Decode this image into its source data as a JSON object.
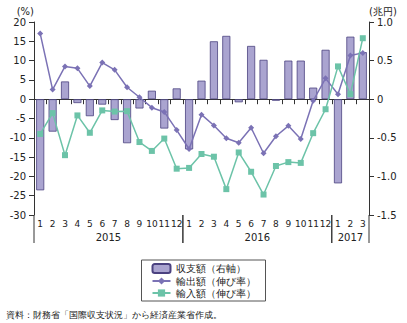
{
  "chart_data": {
    "type": "bar",
    "y_label": "(%)",
    "y2_label": "(兆円)",
    "source": "資料：財務省「国際収支状況」から経済産業省作成。",
    "categories": [
      "1",
      "2",
      "3",
      "4",
      "5",
      "6",
      "7",
      "8",
      "9",
      "10",
      "11",
      "12",
      "1",
      "2",
      "3",
      "4",
      "5",
      "6",
      "7",
      "8",
      "9",
      "10",
      "11",
      "12",
      "1",
      "2",
      "3"
    ],
    "years": [
      "2015",
      "2016",
      "2017"
    ],
    "year_counts": [
      12,
      12,
      3
    ],
    "ylim": [
      -30,
      20
    ],
    "yticks": [
      -30,
      -25,
      -20,
      -15,
      -10,
      -5,
      0,
      5,
      10,
      15,
      20
    ],
    "y2lim": [
      -1.5,
      1.0
    ],
    "y2ticks": [
      {
        "value": -1.5,
        "label": "-1.5"
      },
      {
        "value": -1,
        "label": "-1.0"
      },
      {
        "value": -0.5,
        "label": "-0.5"
      },
      0,
      0.5,
      {
        "value": 1,
        "label": "1.0"
      }
    ],
    "grid": false,
    "legend": "bottom",
    "series": [
      {
        "name": "収支額（右軸）",
        "type": "bar",
        "axis": "y2",
        "color": "#aaa4d0",
        "values": [
          -1.18,
          -0.42,
          0.23,
          -0.05,
          -0.22,
          -0.07,
          -0.27,
          -0.57,
          -0.12,
          0.11,
          -0.38,
          0.14,
          -0.65,
          0.24,
          0.75,
          0.82,
          -0.04,
          0.69,
          0.51,
          -0.02,
          0.5,
          0.5,
          0.15,
          0.64,
          -1.09,
          0.81,
          0.61
        ]
      },
      {
        "name": "輸出額（伸び率）",
        "type": "line",
        "color": "#7b72b5",
        "marker": "diamond",
        "values": [
          17,
          2.5,
          8.5,
          8,
          3.4,
          9.5,
          7.6,
          3.1,
          0.5,
          -2.2,
          -3.3,
          -8,
          -12.9,
          -4,
          -6.8,
          -10.1,
          -11.3,
          -7.4,
          -14,
          -9.6,
          -6.9,
          -10.3,
          -0.4,
          5.4,
          1.3,
          11.3,
          12
        ]
      },
      {
        "name": "輸入額（伸び率）",
        "type": "line",
        "color": "#6cc3a8",
        "marker": "square",
        "values": [
          -9,
          -3.6,
          -14.5,
          -4.2,
          -8.7,
          -2.9,
          -3.2,
          -3.1,
          -11.1,
          -13.4,
          -10.2,
          -18,
          -17.8,
          -14.2,
          -14.9,
          -23.3,
          -13.8,
          -18.8,
          -24.7,
          -17.3,
          -16.3,
          -16.5,
          -8.8,
          -2.6,
          8.5,
          1.3,
          15.8
        ]
      }
    ]
  }
}
